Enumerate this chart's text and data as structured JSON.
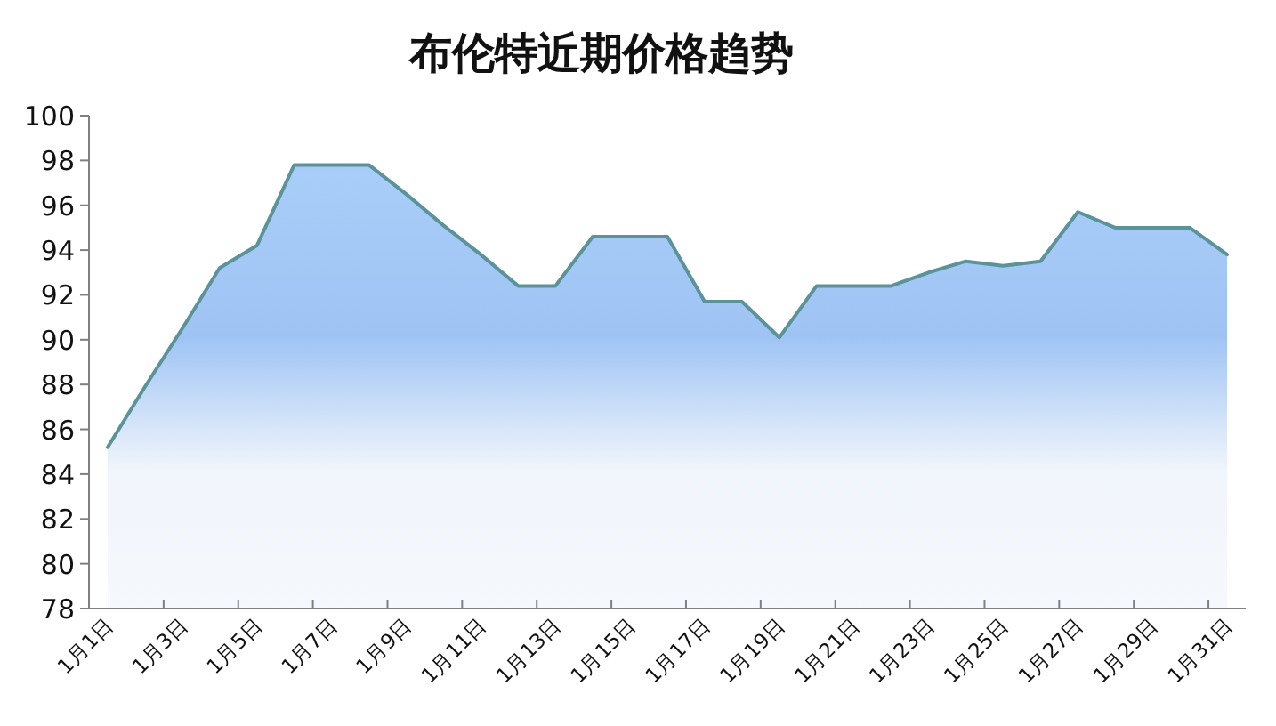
{
  "chart_data": {
    "type": "area",
    "title": "布伦特近期价格趋势",
    "categories": [
      "1月1日",
      null,
      "1月3日",
      null,
      "1月5日",
      null,
      "1月7日",
      null,
      "1月9日",
      null,
      "1月11日",
      null,
      "1月13日",
      null,
      "1月15日",
      null,
      "1月17日",
      null,
      "1月19日",
      null,
      "1月21日",
      null,
      "1月23日",
      null,
      "1月25日",
      null,
      "1月27日",
      null,
      "1月29日",
      null,
      "1月31日"
    ],
    "series": [
      {
        "color": "#5b9399",
        "values": [
          85.2,
          87.9,
          90.5,
          93.2,
          94.2,
          97.8,
          97.8,
          97.8,
          96.5,
          95.1,
          93.8,
          92.4,
          92.4,
          94.6,
          94.6,
          94.6,
          91.7,
          91.7,
          90.1,
          92.4,
          92.4,
          92.4,
          93.0,
          93.5,
          93.3,
          93.5,
          95.7,
          95.0,
          95.0,
          95.0,
          93.8
        ]
      }
    ],
    "ylim": [
      78,
      100
    ],
    "yticks": [
      78,
      80,
      82,
      84,
      86,
      88,
      90,
      92,
      94,
      96,
      98,
      100
    ],
    "grid": false
  }
}
